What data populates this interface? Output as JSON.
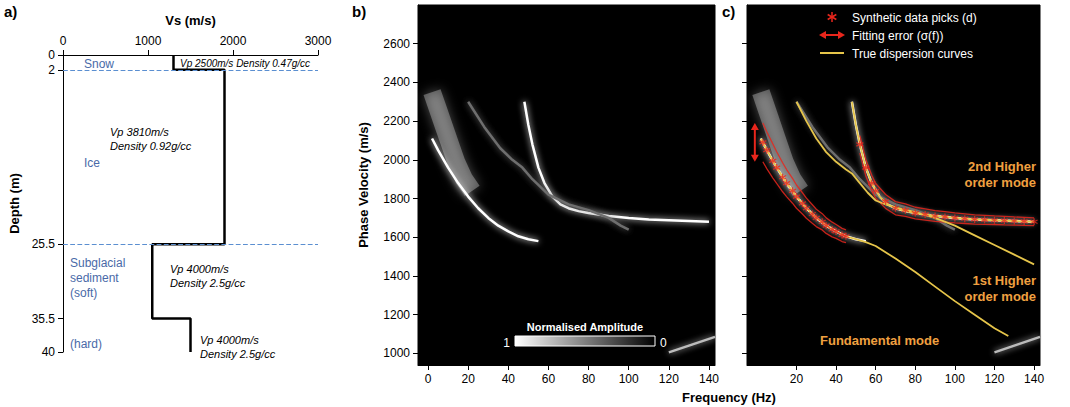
{
  "chart_data": [
    {
      "type": "line",
      "title": "a)",
      "xlabel": "Vs (m/s)",
      "ylabel": "Depth (m)",
      "xlim": [
        0,
        3000
      ],
      "xticks": [
        0,
        1000,
        2000,
        3000
      ],
      "ylim": [
        0,
        40
      ],
      "yticks": [
        0,
        2,
        25.5,
        35.5,
        40
      ],
      "x": [
        1300,
        1300,
        1900,
        1900,
        1050,
        1050,
        1500,
        1500
      ],
      "values": [
        0,
        2,
        2,
        25.5,
        25.5,
        35.5,
        35.5,
        40
      ],
      "color": "#000000",
      "reference_lines": {
        "y": [
          2,
          25.5
        ],
        "color": "#5b8fd1",
        "line_style": "dashed"
      },
      "annotations": [
        {
          "text": "Snow",
          "color": "#4a6aa8"
        },
        {
          "text": "Vp 2500m/s Density 0.47g/cc",
          "color": "#000000"
        },
        {
          "text": "Ice",
          "color": "#4a6aa8"
        },
        {
          "text": "Vp 3810m/s Density 0.92g/cc",
          "color": "#000000"
        },
        {
          "text": "Subglacial sediment (soft)",
          "color": "#4a6aa8"
        },
        {
          "text": "Vp 4000m/s Density 2.5g/cc",
          "color": "#000000"
        },
        {
          "text": "(hard)",
          "color": "#4a6aa8"
        },
        {
          "text": "Vp 4000m/s Density 2.5g/cc",
          "color": "#000000"
        }
      ]
    },
    {
      "type": "line",
      "title": "b)",
      "xlabel": "Frequency (Hz)",
      "ylabel": "Phase Velocity (m/s)",
      "xlim": [
        -5,
        143
      ],
      "xticks": [
        0,
        20,
        40,
        60,
        80,
        100,
        120,
        140
      ],
      "ylim": [
        940,
        2800
      ],
      "yticks": [
        1000,
        1200,
        1400,
        1600,
        1800,
        2000,
        2200,
        2400,
        2600
      ],
      "series": [
        {
          "x": [
            2,
            5,
            8,
            11,
            14,
            18,
            22
          ],
          "values": [
            2350,
            2260,
            2170,
            2080,
            1990,
            1900,
            1840
          ],
          "color": "#ffffff",
          "line_style": "glow"
        },
        {
          "x": [
            2,
            5,
            10,
            15,
            20,
            25,
            30,
            35,
            40,
            45,
            50,
            55
          ],
          "values": [
            2110,
            2050,
            1960,
            1880,
            1810,
            1750,
            1700,
            1660,
            1630,
            1605,
            1590,
            1580
          ],
          "color": "#ffffff",
          "line_style": "solid"
        },
        {
          "x": [
            48,
            50,
            52,
            55,
            58,
            62,
            66,
            70,
            75,
            80,
            90,
            100,
            110,
            120,
            130,
            140
          ],
          "values": [
            2300,
            2180,
            2080,
            1960,
            1880,
            1810,
            1770,
            1750,
            1735,
            1725,
            1710,
            1700,
            1692,
            1688,
            1684,
            1680
          ],
          "color": "#ffffff",
          "line_style": "solid"
        },
        {
          "x": [
            20,
            28,
            36,
            42,
            47,
            52,
            60,
            70,
            80,
            90,
            96,
            100
          ],
          "values": [
            2300,
            2170,
            2060,
            2000,
            1960,
            1900,
            1820,
            1770,
            1740,
            1700,
            1660,
            1640
          ],
          "color": "#6e6e6e",
          "line_style": "solid"
        },
        {
          "x": [
            120,
            130,
            143
          ],
          "values": [
            1005,
            1040,
            1085
          ],
          "color": "#bbbbbb",
          "line_style": "solid"
        }
      ],
      "colorbar": {
        "label": "Normalised Amplitude",
        "range": [
          1,
          0
        ],
        "ticks": [
          1,
          0
        ]
      }
    },
    {
      "type": "line",
      "title": "c)",
      "xlim": [
        -5,
        143
      ],
      "xticks": [
        20,
        40,
        60,
        80,
        100,
        120,
        140
      ],
      "ylim": [
        940,
        2800
      ],
      "yticks": [
        1000,
        1200,
        1400,
        1600,
        1800,
        2000,
        2200,
        2400,
        2600
      ],
      "tick_labels": "x",
      "series": [
        {
          "type": "line",
          "color": "#e6c54a",
          "x": [
            2,
            5,
            10,
            15,
            20,
            25,
            30,
            35,
            40,
            45,
            50,
            55,
            60,
            70,
            80,
            90,
            100,
            110,
            120,
            127
          ],
          "values": [
            2110,
            2050,
            1960,
            1880,
            1810,
            1750,
            1700,
            1660,
            1630,
            1605,
            1590,
            1575,
            1555,
            1490,
            1420,
            1345,
            1270,
            1200,
            1130,
            1090
          ]
        },
        {
          "type": "line",
          "color": "#e6c54a",
          "x": [
            20,
            25,
            30,
            35,
            40,
            45,
            48,
            52,
            56,
            60,
            65,
            70,
            80,
            90,
            100,
            110,
            120,
            130,
            140
          ],
          "values": [
            2300,
            2200,
            2110,
            2040,
            1990,
            1950,
            1930,
            1880,
            1830,
            1790,
            1770,
            1755,
            1730,
            1700,
            1660,
            1610,
            1560,
            1510,
            1460
          ]
        },
        {
          "type": "line",
          "color": "#e6c54a",
          "x": [
            48,
            50,
            52,
            55,
            58,
            62,
            66,
            70,
            75,
            80,
            90,
            100,
            110,
            120,
            130,
            140
          ],
          "values": [
            2300,
            2180,
            2080,
            1960,
            1880,
            1810,
            1770,
            1750,
            1735,
            1725,
            1710,
            1700,
            1692,
            1688,
            1684,
            1680
          ]
        },
        {
          "type": "scatter",
          "color": "#e8261c",
          "marker": "asterisk",
          "x": [
            3,
            5,
            8,
            10,
            13,
            15,
            18,
            20,
            23,
            25,
            28,
            30,
            33,
            35,
            38,
            40,
            43,
            45
          ],
          "values": [
            2090,
            2050,
            1995,
            1960,
            1910,
            1880,
            1840,
            1810,
            1775,
            1750,
            1720,
            1700,
            1680,
            1660,
            1640,
            1630,
            1612,
            1605
          ],
          "error": [
            100,
            95,
            88,
            82,
            75,
            70,
            64,
            60,
            55,
            52,
            48,
            45,
            42,
            40,
            38,
            36,
            34,
            33
          ]
        },
        {
          "type": "scatter",
          "color": "#e8261c",
          "marker": "asterisk",
          "x": [
            52,
            55,
            58,
            60,
            65,
            70,
            75,
            80,
            85,
            90,
            95,
            100,
            105,
            110,
            115,
            120,
            125,
            130,
            135,
            140
          ],
          "values": [
            2080,
            1960,
            1880,
            1840,
            1785,
            1750,
            1740,
            1725,
            1718,
            1710,
            1705,
            1700,
            1696,
            1692,
            1690,
            1688,
            1686,
            1684,
            1682,
            1680
          ],
          "error": [
            45,
            42,
            40,
            38,
            36,
            34,
            32,
            30,
            29,
            28,
            27,
            26,
            25,
            24,
            23,
            22,
            22,
            21,
            21,
            20
          ]
        }
      ],
      "legend": "upper right",
      "legend_items": [
        {
          "label": "Synthetic data picks (d)",
          "marker": "asterisk",
          "color": "#e8261c"
        },
        {
          "label": "Fitting error (σ(f))",
          "marker": "double_arrow",
          "color": "#e8261c"
        },
        {
          "label": "True dispersion curves",
          "marker": "line",
          "color": "#e6c54a"
        }
      ],
      "annotations": [
        {
          "text": "2nd Higher order mode",
          "color": "#f0a040"
        },
        {
          "text": "1st Higher order mode",
          "color": "#f0a040"
        },
        {
          "text": "Fundamental mode",
          "color": "#f0a040"
        }
      ]
    }
  ]
}
